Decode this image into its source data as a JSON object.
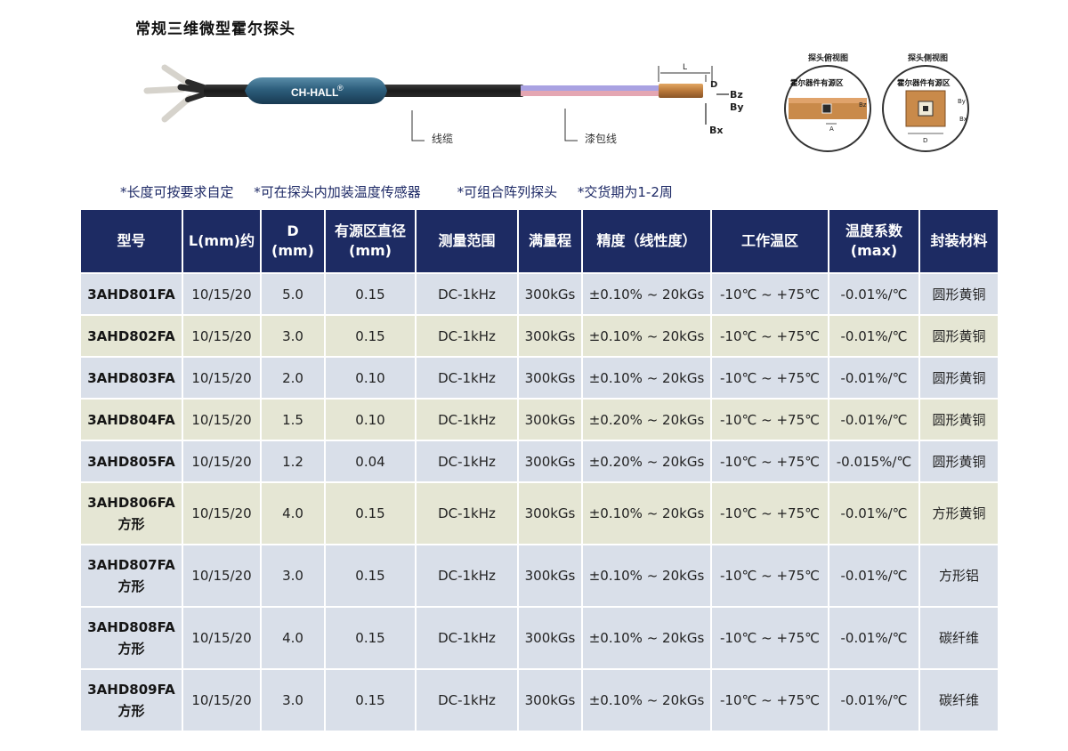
{
  "title": "常规三维微型霍尔探头",
  "diagram": {
    "brand": "CH-HALL",
    "brand_mark": "®",
    "cable_label": "线缆",
    "wire_label": "漆包线",
    "dim_L": "L",
    "dim_D": "D",
    "axis_bz": "Bz",
    "axis_by": "By",
    "axis_bx": "Bx"
  },
  "views": {
    "top_view_caption": "探头俯视图",
    "side_view_caption": "探头侧视图",
    "active_area_label": "霍尔器件有源区",
    "top_axis": "Bz",
    "top_dim": "A",
    "side_axis_by": "By",
    "side_axis_bx": "Bx",
    "side_dim": "D"
  },
  "notes": [
    "*长度可按要求自定",
    "*可在探头内加装温度传感器",
    "*可组合阵列探头",
    "*交货期为1-2周"
  ],
  "table": {
    "headers": [
      {
        "l1": "型号",
        "l2": ""
      },
      {
        "l1": "L(mm)约",
        "l2": ""
      },
      {
        "l1": "D",
        "l2": "(mm)"
      },
      {
        "l1": "有源区直径",
        "l2": "(mm)"
      },
      {
        "l1": "测量范围",
        "l2": ""
      },
      {
        "l1": "满量程",
        "l2": ""
      },
      {
        "l1": "精度（线性度）",
        "l2": ""
      },
      {
        "l1": "工作温区",
        "l2": ""
      },
      {
        "l1": "温度系数",
        "l2": "(max)"
      },
      {
        "l1": "封装材料",
        "l2": ""
      }
    ],
    "rows": [
      {
        "model": "3AHD801FA",
        "model2": "",
        "L": "10/15/20",
        "D": "5.0",
        "active": "0.15",
        "range": "DC-1kHz",
        "full": "300kGs",
        "accuracy": "±0.10% ~ 20kGs",
        "temp": "-10℃ ~ +75℃",
        "coef": "-0.01%/℃",
        "material": "圆形黄铜"
      },
      {
        "model": "3AHD802FA",
        "model2": "",
        "L": "10/15/20",
        "D": "3.0",
        "active": "0.15",
        "range": "DC-1kHz",
        "full": "300kGs",
        "accuracy": "±0.10% ~ 20kGs",
        "temp": "-10℃ ~ +75℃",
        "coef": "-0.01%/℃",
        "material": "圆形黄铜"
      },
      {
        "model": "3AHD803FA",
        "model2": "",
        "L": "10/15/20",
        "D": "2.0",
        "active": "0.10",
        "range": "DC-1kHz",
        "full": "300kGs",
        "accuracy": "±0.10% ~ 20kGs",
        "temp": "-10℃ ~ +75℃",
        "coef": "-0.01%/℃",
        "material": "圆形黄铜"
      },
      {
        "model": "3AHD804FA",
        "model2": "",
        "L": "10/15/20",
        "D": "1.5",
        "active": "0.10",
        "range": "DC-1kHz",
        "full": "300kGs",
        "accuracy": "±0.20% ~ 20kGs",
        "temp": "-10℃ ~ +75℃",
        "coef": "-0.01%/℃",
        "material": "圆形黄铜"
      },
      {
        "model": "3AHD805FA",
        "model2": "",
        "L": "10/15/20",
        "D": "1.2",
        "active": "0.04",
        "range": "DC-1kHz",
        "full": "300kGs",
        "accuracy": "±0.20% ~ 20kGs",
        "temp": "-10℃ ~ +75℃",
        "coef": "-0.015%/℃",
        "material": "圆形黄铜"
      },
      {
        "model": "3AHD806FA",
        "model2": "方形",
        "L": "10/15/20",
        "D": "4.0",
        "active": "0.15",
        "range": "DC-1kHz",
        "full": "300kGs",
        "accuracy": "±0.10% ~ 20kGs",
        "temp": "-10℃ ~ +75℃",
        "coef": "-0.01%/℃",
        "material": "方形黄铜"
      },
      {
        "model": "3AHD807FA",
        "model2": "方形",
        "L": "10/15/20",
        "D": "3.0",
        "active": "0.15",
        "range": "DC-1kHz",
        "full": "300kGs",
        "accuracy": "±0.10% ~ 20kGs",
        "temp": "-10℃ ~ +75℃",
        "coef": "-0.01%/℃",
        "material": "方形铝"
      },
      {
        "model": "3AHD808FA",
        "model2": "方形",
        "L": "10/15/20",
        "D": "4.0",
        "active": "0.15",
        "range": "DC-1kHz",
        "full": "300kGs",
        "accuracy": "±0.10% ~ 20kGs",
        "temp": "-10℃ ~ +75℃",
        "coef": "-0.01%/℃",
        "material": "碳纤维"
      },
      {
        "model": "3AHD809FA",
        "model2": "方形",
        "L": "10/15/20",
        "D": "3.0",
        "active": "0.15",
        "range": "DC-1kHz",
        "full": "300kGs",
        "accuracy": "±0.10% ~ 20kGs",
        "temp": "-10℃ ~ +75℃",
        "coef": "-0.01%/℃",
        "material": "碳纤维"
      }
    ]
  },
  "colors": {
    "header_bg": "#1d2b63",
    "row_blue": "#d9dfe9",
    "row_beige": "#e5e6d4",
    "note_text": "#1e2a66",
    "copper": "#c98a4a"
  }
}
